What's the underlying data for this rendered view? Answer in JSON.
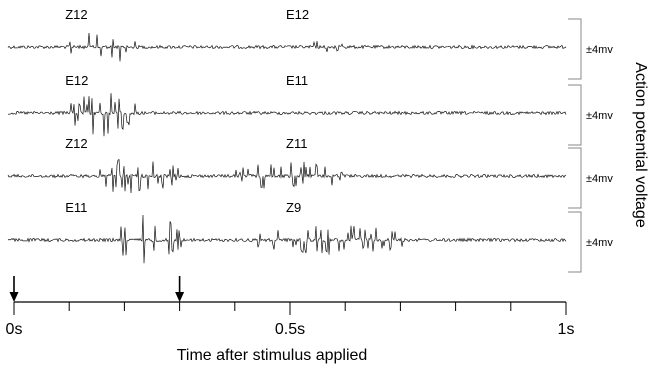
{
  "chart_data": {
    "type": "line",
    "title": "",
    "xlabel": "Time after stimulus applied",
    "ylabel": "Action potential voltage",
    "x_ticks": [
      "0s",
      "0.5s",
      "1s"
    ],
    "xlim": [
      0,
      1
    ],
    "scale_bar_label": "±4mv",
    "stimulus_times": [
      0,
      0.3
    ],
    "traces": [
      {
        "labels": [
          {
            "text": "Z12",
            "x": 0.1
          },
          {
            "text": "E12",
            "x": 0.5
          }
        ],
        "bursts": [
          {
            "start": 0.1,
            "end": 0.22,
            "amplitude": 2.5
          },
          {
            "start": 0.54,
            "end": 0.6,
            "amplitude": 1.2
          }
        ]
      },
      {
        "labels": [
          {
            "text": "E12",
            "x": 0.1
          },
          {
            "text": "E11",
            "x": 0.5
          }
        ],
        "bursts": [
          {
            "start": 0.1,
            "end": 0.22,
            "amplitude": 3.4
          }
        ]
      },
      {
        "labels": [
          {
            "text": "Z12",
            "x": 0.1
          },
          {
            "text": "Z11",
            "x": 0.5
          }
        ],
        "bursts": [
          {
            "start": 0.13,
            "end": 0.3,
            "amplitude": 2.6
          },
          {
            "start": 0.4,
            "end": 0.6,
            "amplitude": 2.1
          }
        ]
      },
      {
        "labels": [
          {
            "text": "E11",
            "x": 0.1
          },
          {
            "text": "Z9",
            "x": 0.5
          }
        ],
        "bursts": [
          {
            "start": 0.19,
            "end": 0.31,
            "amplitude": 3.8
          },
          {
            "start": 0.44,
            "end": 0.73,
            "amplitude": 2.1
          }
        ]
      }
    ]
  }
}
